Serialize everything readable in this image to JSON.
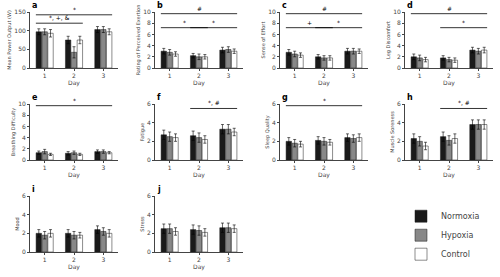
{
  "chart_data": [
    {
      "type": "bar",
      "title": "a",
      "xlabel": "Day",
      "ylabel": "Mean Power Output (W)",
      "categories": [
        "1",
        "2",
        "3"
      ],
      "ylim": [
        0,
        150
      ],
      "yticks": [
        0,
        50,
        100,
        150
      ],
      "grid": false,
      "legend": "lower right",
      "series": [
        {
          "name": "Normoxia",
          "color": "#1a1a1a",
          "values": [
            97,
            75,
            103
          ],
          "errors": [
            8,
            10,
            8
          ]
        },
        {
          "name": "Hypoxia",
          "color": "#888888",
          "values": [
            97,
            42,
            103
          ],
          "errors": [
            8,
            15,
            8
          ]
        },
        {
          "name": "Control",
          "color": "#ffffff",
          "values": [
            93,
            75,
            97
          ],
          "errors": [
            10,
            10,
            8
          ]
        }
      ],
      "annotations": [
        {
          "text": "*",
          "x1": "1",
          "x2": "3",
          "y": 142.5
        },
        {
          "text": "*, +, &",
          "x1": "1",
          "x2": "2",
          "y": 120
        }
      ]
    },
    {
      "type": "bar",
      "title": "b",
      "xlabel": "Day",
      "ylabel": "Rating of Perceived Exertion",
      "categories": [
        "1",
        "2",
        "3"
      ],
      "ylim": [
        0,
        10
      ],
      "yticks": [
        0,
        2,
        4,
        6,
        8,
        10
      ],
      "grid": false,
      "series": [
        {
          "name": "Normoxia",
          "color": "#1a1a1a",
          "values": [
            3.0,
            2.2,
            3.2
          ],
          "errors": [
            0.5,
            0.4,
            0.5
          ]
        },
        {
          "name": "Hypoxia",
          "color": "#888888",
          "values": [
            2.8,
            2.0,
            3.3
          ],
          "errors": [
            0.5,
            0.5,
            0.5
          ]
        },
        {
          "name": "Control",
          "color": "#ffffff",
          "values": [
            2.5,
            2.0,
            3.0
          ],
          "errors": [
            0.4,
            0.4,
            0.4
          ]
        }
      ],
      "annotations": [
        {
          "text": "#",
          "x1": "1",
          "x2": "3",
          "y": 9.7
        },
        {
          "text": "*",
          "x1": "1",
          "x2": "2",
          "y": 7.2
        },
        {
          "text": "*",
          "x1": "2",
          "x2": "3",
          "y": 7.2
        }
      ]
    },
    {
      "type": "bar",
      "title": "c",
      "xlabel": "Day",
      "ylabel": "Sense of Effort",
      "categories": [
        "1",
        "2",
        "3"
      ],
      "ylim": [
        0,
        10
      ],
      "yticks": [
        0,
        2,
        4,
        6,
        8,
        10
      ],
      "grid": false,
      "series": [
        {
          "name": "Normoxia",
          "color": "#1a1a1a",
          "values": [
            2.8,
            2.0,
            3.0
          ],
          "errors": [
            0.5,
            0.4,
            0.5
          ]
        },
        {
          "name": "Hypoxia",
          "color": "#888888",
          "values": [
            2.5,
            1.8,
            3.0
          ],
          "errors": [
            0.5,
            0.4,
            0.5
          ]
        },
        {
          "name": "Control",
          "color": "#ffffff",
          "values": [
            2.3,
            1.8,
            3.0
          ],
          "errors": [
            0.4,
            0.4,
            0.4
          ]
        }
      ],
      "annotations": [
        {
          "text": "#",
          "x1": "1",
          "x2": "3",
          "y": 9.7
        },
        {
          "text": "+",
          "x1": "1",
          "x2": "2",
          "y": 7.2
        },
        {
          "text": "*",
          "x1": "2",
          "x2": "3",
          "y": 7.2
        }
      ]
    },
    {
      "type": "bar",
      "title": "d",
      "xlabel": "Day",
      "ylabel": "Leg Discomfort",
      "categories": [
        "1",
        "2",
        "3"
      ],
      "ylim": [
        0,
        10
      ],
      "yticks": [
        0,
        2,
        4,
        6,
        8,
        10
      ],
      "grid": false,
      "series": [
        {
          "name": "Normoxia",
          "color": "#1a1a1a",
          "values": [
            2.0,
            1.8,
            3.2
          ],
          "errors": [
            0.5,
            0.4,
            0.5
          ]
        },
        {
          "name": "Hypoxia",
          "color": "#888888",
          "values": [
            1.8,
            1.5,
            3.0
          ],
          "errors": [
            0.5,
            0.4,
            0.5
          ]
        },
        {
          "name": "Control",
          "color": "#ffffff",
          "values": [
            1.5,
            1.4,
            3.2
          ],
          "errors": [
            0.4,
            0.4,
            0.5
          ]
        }
      ],
      "annotations": [
        {
          "text": "#",
          "x1": "1",
          "x2": "3",
          "y": 9.7
        },
        {
          "text": "*",
          "x1": "2",
          "x2": "3",
          "y": 7.2
        }
      ]
    },
    {
      "type": "bar",
      "title": "e",
      "xlabel": "Day",
      "ylabel": "Breathing Difficulty",
      "categories": [
        "1",
        "2",
        "3"
      ],
      "ylim": [
        0,
        10
      ],
      "yticks": [
        0,
        2,
        4,
        6,
        8,
        10
      ],
      "grid": false,
      "series": [
        {
          "name": "Normoxia",
          "color": "#1a1a1a",
          "values": [
            1.3,
            1.2,
            1.5
          ],
          "errors": [
            0.3,
            0.3,
            0.3
          ]
        },
        {
          "name": "Hypoxia",
          "color": "#888888",
          "values": [
            1.5,
            1.3,
            1.5
          ],
          "errors": [
            0.4,
            0.3,
            0.3
          ]
        },
        {
          "name": "Control",
          "color": "#ffffff",
          "values": [
            1.0,
            1.0,
            1.3
          ],
          "errors": [
            0.2,
            0.2,
            0.2
          ]
        }
      ],
      "annotations": [
        {
          "text": "*",
          "x1": "1",
          "x2": "3",
          "y": 9.7
        }
      ]
    },
    {
      "type": "bar",
      "title": "f",
      "xlabel": "Day",
      "ylabel": "Fatigue",
      "categories": [
        "1",
        "2",
        "3"
      ],
      "ylim": [
        0,
        6
      ],
      "yticks": [
        0,
        2,
        4,
        6
      ],
      "grid": false,
      "series": [
        {
          "name": "Normoxia",
          "color": "#1a1a1a",
          "values": [
            2.7,
            2.6,
            3.3
          ],
          "errors": [
            0.5,
            0.5,
            0.5
          ]
        },
        {
          "name": "Hypoxia",
          "color": "#888888",
          "values": [
            2.5,
            2.4,
            3.3
          ],
          "errors": [
            0.5,
            0.5,
            0.5
          ]
        },
        {
          "name": "Control",
          "color": "#ffffff",
          "values": [
            2.4,
            2.2,
            3.0
          ],
          "errors": [
            0.4,
            0.4,
            0.4
          ]
        }
      ],
      "annotations": [
        {
          "text": "*, #",
          "x1": "2",
          "x2": "3",
          "y": 5.52
        }
      ]
    },
    {
      "type": "bar",
      "title": "g",
      "xlabel": "Day",
      "ylabel": "Sleep Quality",
      "categories": [
        "1",
        "2",
        "3"
      ],
      "ylim": [
        0,
        6
      ],
      "yticks": [
        0,
        2,
        4,
        6
      ],
      "grid": false,
      "series": [
        {
          "name": "Normoxia",
          "color": "#1a1a1a",
          "values": [
            2.0,
            2.1,
            2.4
          ],
          "errors": [
            0.4,
            0.4,
            0.4
          ]
        },
        {
          "name": "Hypoxia",
          "color": "#888888",
          "values": [
            1.8,
            2.0,
            2.3
          ],
          "errors": [
            0.4,
            0.4,
            0.4
          ]
        },
        {
          "name": "Control",
          "color": "#ffffff",
          "values": [
            1.7,
            1.9,
            2.4
          ],
          "errors": [
            0.3,
            0.3,
            0.4
          ]
        }
      ],
      "annotations": [
        {
          "text": "*",
          "x1": "1",
          "x2": "3",
          "y": 5.82
        }
      ]
    },
    {
      "type": "bar",
      "title": "h",
      "xlabel": "Day",
      "ylabel": "Muscle Soreness",
      "categories": [
        "1",
        "2",
        "3"
      ],
      "ylim": [
        0,
        6
      ],
      "yticks": [
        0,
        2,
        4,
        6
      ],
      "grid": false,
      "series": [
        {
          "name": "Normoxia",
          "color": "#1a1a1a",
          "values": [
            2.3,
            2.5,
            3.8
          ],
          "errors": [
            0.5,
            0.5,
            0.5
          ]
        },
        {
          "name": "Hypoxia",
          "color": "#888888",
          "values": [
            2.0,
            2.1,
            3.8
          ],
          "errors": [
            0.5,
            0.5,
            0.5
          ]
        },
        {
          "name": "Control",
          "color": "#ffffff",
          "values": [
            1.5,
            2.3,
            3.8
          ],
          "errors": [
            0.4,
            0.5,
            0.5
          ]
        }
      ],
      "annotations": [
        {
          "text": "*, #",
          "x1": "2",
          "x2": "3",
          "y": 5.52
        }
      ]
    },
    {
      "type": "bar",
      "title": "i",
      "xlabel": "Day",
      "ylabel": "Mood",
      "categories": [
        "1",
        "2",
        "3"
      ],
      "ylim": [
        0,
        6
      ],
      "yticks": [
        0,
        2,
        4,
        6
      ],
      "grid": false,
      "series": [
        {
          "name": "Normoxia",
          "color": "#1a1a1a",
          "values": [
            2.0,
            2.0,
            2.4
          ],
          "errors": [
            0.4,
            0.4,
            0.4
          ]
        },
        {
          "name": "Hypoxia",
          "color": "#888888",
          "values": [
            1.8,
            1.8,
            2.2
          ],
          "errors": [
            0.4,
            0.4,
            0.4
          ]
        },
        {
          "name": "Control",
          "color": "#ffffff",
          "values": [
            2.0,
            1.8,
            2.0
          ],
          "errors": [
            0.4,
            0.3,
            0.4
          ]
        }
      ]
    },
    {
      "type": "bar",
      "title": "j",
      "xlabel": "Day",
      "ylabel": "Stress",
      "categories": [
        "1",
        "2",
        "3"
      ],
      "ylim": [
        0,
        6
      ],
      "yticks": [
        0,
        2,
        4,
        6
      ],
      "grid": false,
      "series": [
        {
          "name": "Normoxia",
          "color": "#1a1a1a",
          "values": [
            2.5,
            2.4,
            2.6
          ],
          "errors": [
            0.5,
            0.5,
            0.5
          ]
        },
        {
          "name": "Hypoxia",
          "color": "#888888",
          "values": [
            2.5,
            2.3,
            2.6
          ],
          "errors": [
            0.5,
            0.5,
            0.5
          ]
        },
        {
          "name": "Control",
          "color": "#ffffff",
          "values": [
            2.2,
            2.1,
            2.5
          ],
          "errors": [
            0.4,
            0.4,
            0.4
          ]
        }
      ]
    }
  ]
}
